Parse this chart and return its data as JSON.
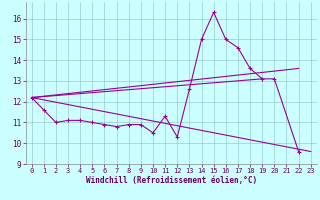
{
  "xlabel": "Windchill (Refroidissement éolien,°C)",
  "bg_color": "#ccffff",
  "grid_color": "#99cccc",
  "line_color": "#990099",
  "xlim": [
    -0.5,
    23.5
  ],
  "ylim": [
    9,
    16.8
  ],
  "yticks": [
    9,
    10,
    11,
    12,
    13,
    14,
    15,
    16
  ],
  "xticks": [
    0,
    1,
    2,
    3,
    4,
    5,
    6,
    7,
    8,
    9,
    10,
    11,
    12,
    13,
    14,
    15,
    16,
    17,
    18,
    19,
    20,
    21,
    22,
    23
  ],
  "main_x": [
    0,
    1,
    2,
    3,
    4,
    5,
    6,
    7,
    8,
    9,
    10,
    11,
    12,
    13,
    14,
    15,
    16,
    17,
    18,
    19,
    20,
    22
  ],
  "main_y": [
    12.2,
    11.6,
    11.0,
    11.1,
    11.1,
    11.0,
    10.9,
    10.8,
    10.9,
    10.9,
    10.5,
    11.3,
    10.3,
    12.6,
    15.0,
    16.3,
    15.0,
    14.6,
    13.6,
    13.1,
    13.1,
    9.6
  ],
  "trend1_x": [
    0,
    23
  ],
  "trend1_y": [
    12.2,
    9.6
  ],
  "trend2_x": [
    0,
    19
  ],
  "trend2_y": [
    12.2,
    13.1
  ],
  "trend3_x": [
    0,
    22
  ],
  "trend3_y": [
    12.2,
    13.6
  ]
}
